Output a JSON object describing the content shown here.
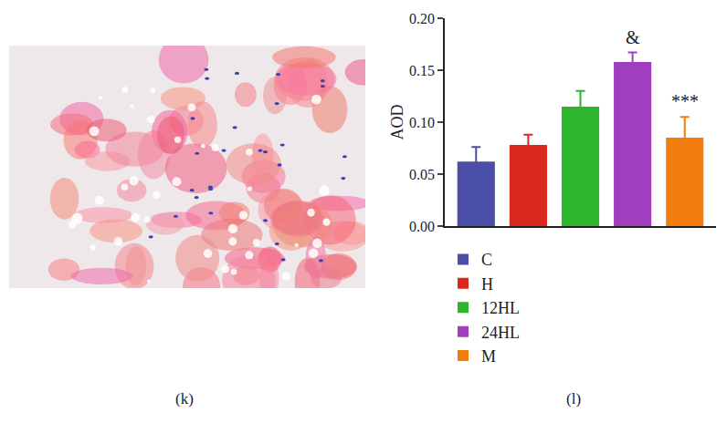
{
  "image_panel": {
    "label": "(k)"
  },
  "chart_data": {
    "type": "bar",
    "panel_label": "(l)",
    "y_label": "AOD",
    "categories": [
      "C",
      "H",
      "12HL",
      "24HL",
      "M"
    ],
    "values": [
      0.062,
      0.078,
      0.115,
      0.158,
      0.085
    ],
    "errors": [
      0.014,
      0.01,
      0.015,
      0.009,
      0.02
    ],
    "colors": [
      "#4b4ea6",
      "#d9291c",
      "#2db52d",
      "#a03fbe",
      "#f27c0c"
    ],
    "annotations": [
      {
        "category": "24HL",
        "text": "&"
      },
      {
        "category": "M",
        "text": "***"
      }
    ],
    "ylim": [
      0,
      0.2
    ],
    "yticks": [
      {
        "value": 0,
        "label": "0.00"
      },
      {
        "value": 0.05,
        "label": "0.05"
      },
      {
        "value": 0.1,
        "label": "0.10"
      },
      {
        "value": 0.15,
        "label": "0.15"
      },
      {
        "value": 0.2,
        "label": "0.20"
      }
    ],
    "grid": false,
    "legend": "bottom",
    "tick_labels": "y"
  }
}
